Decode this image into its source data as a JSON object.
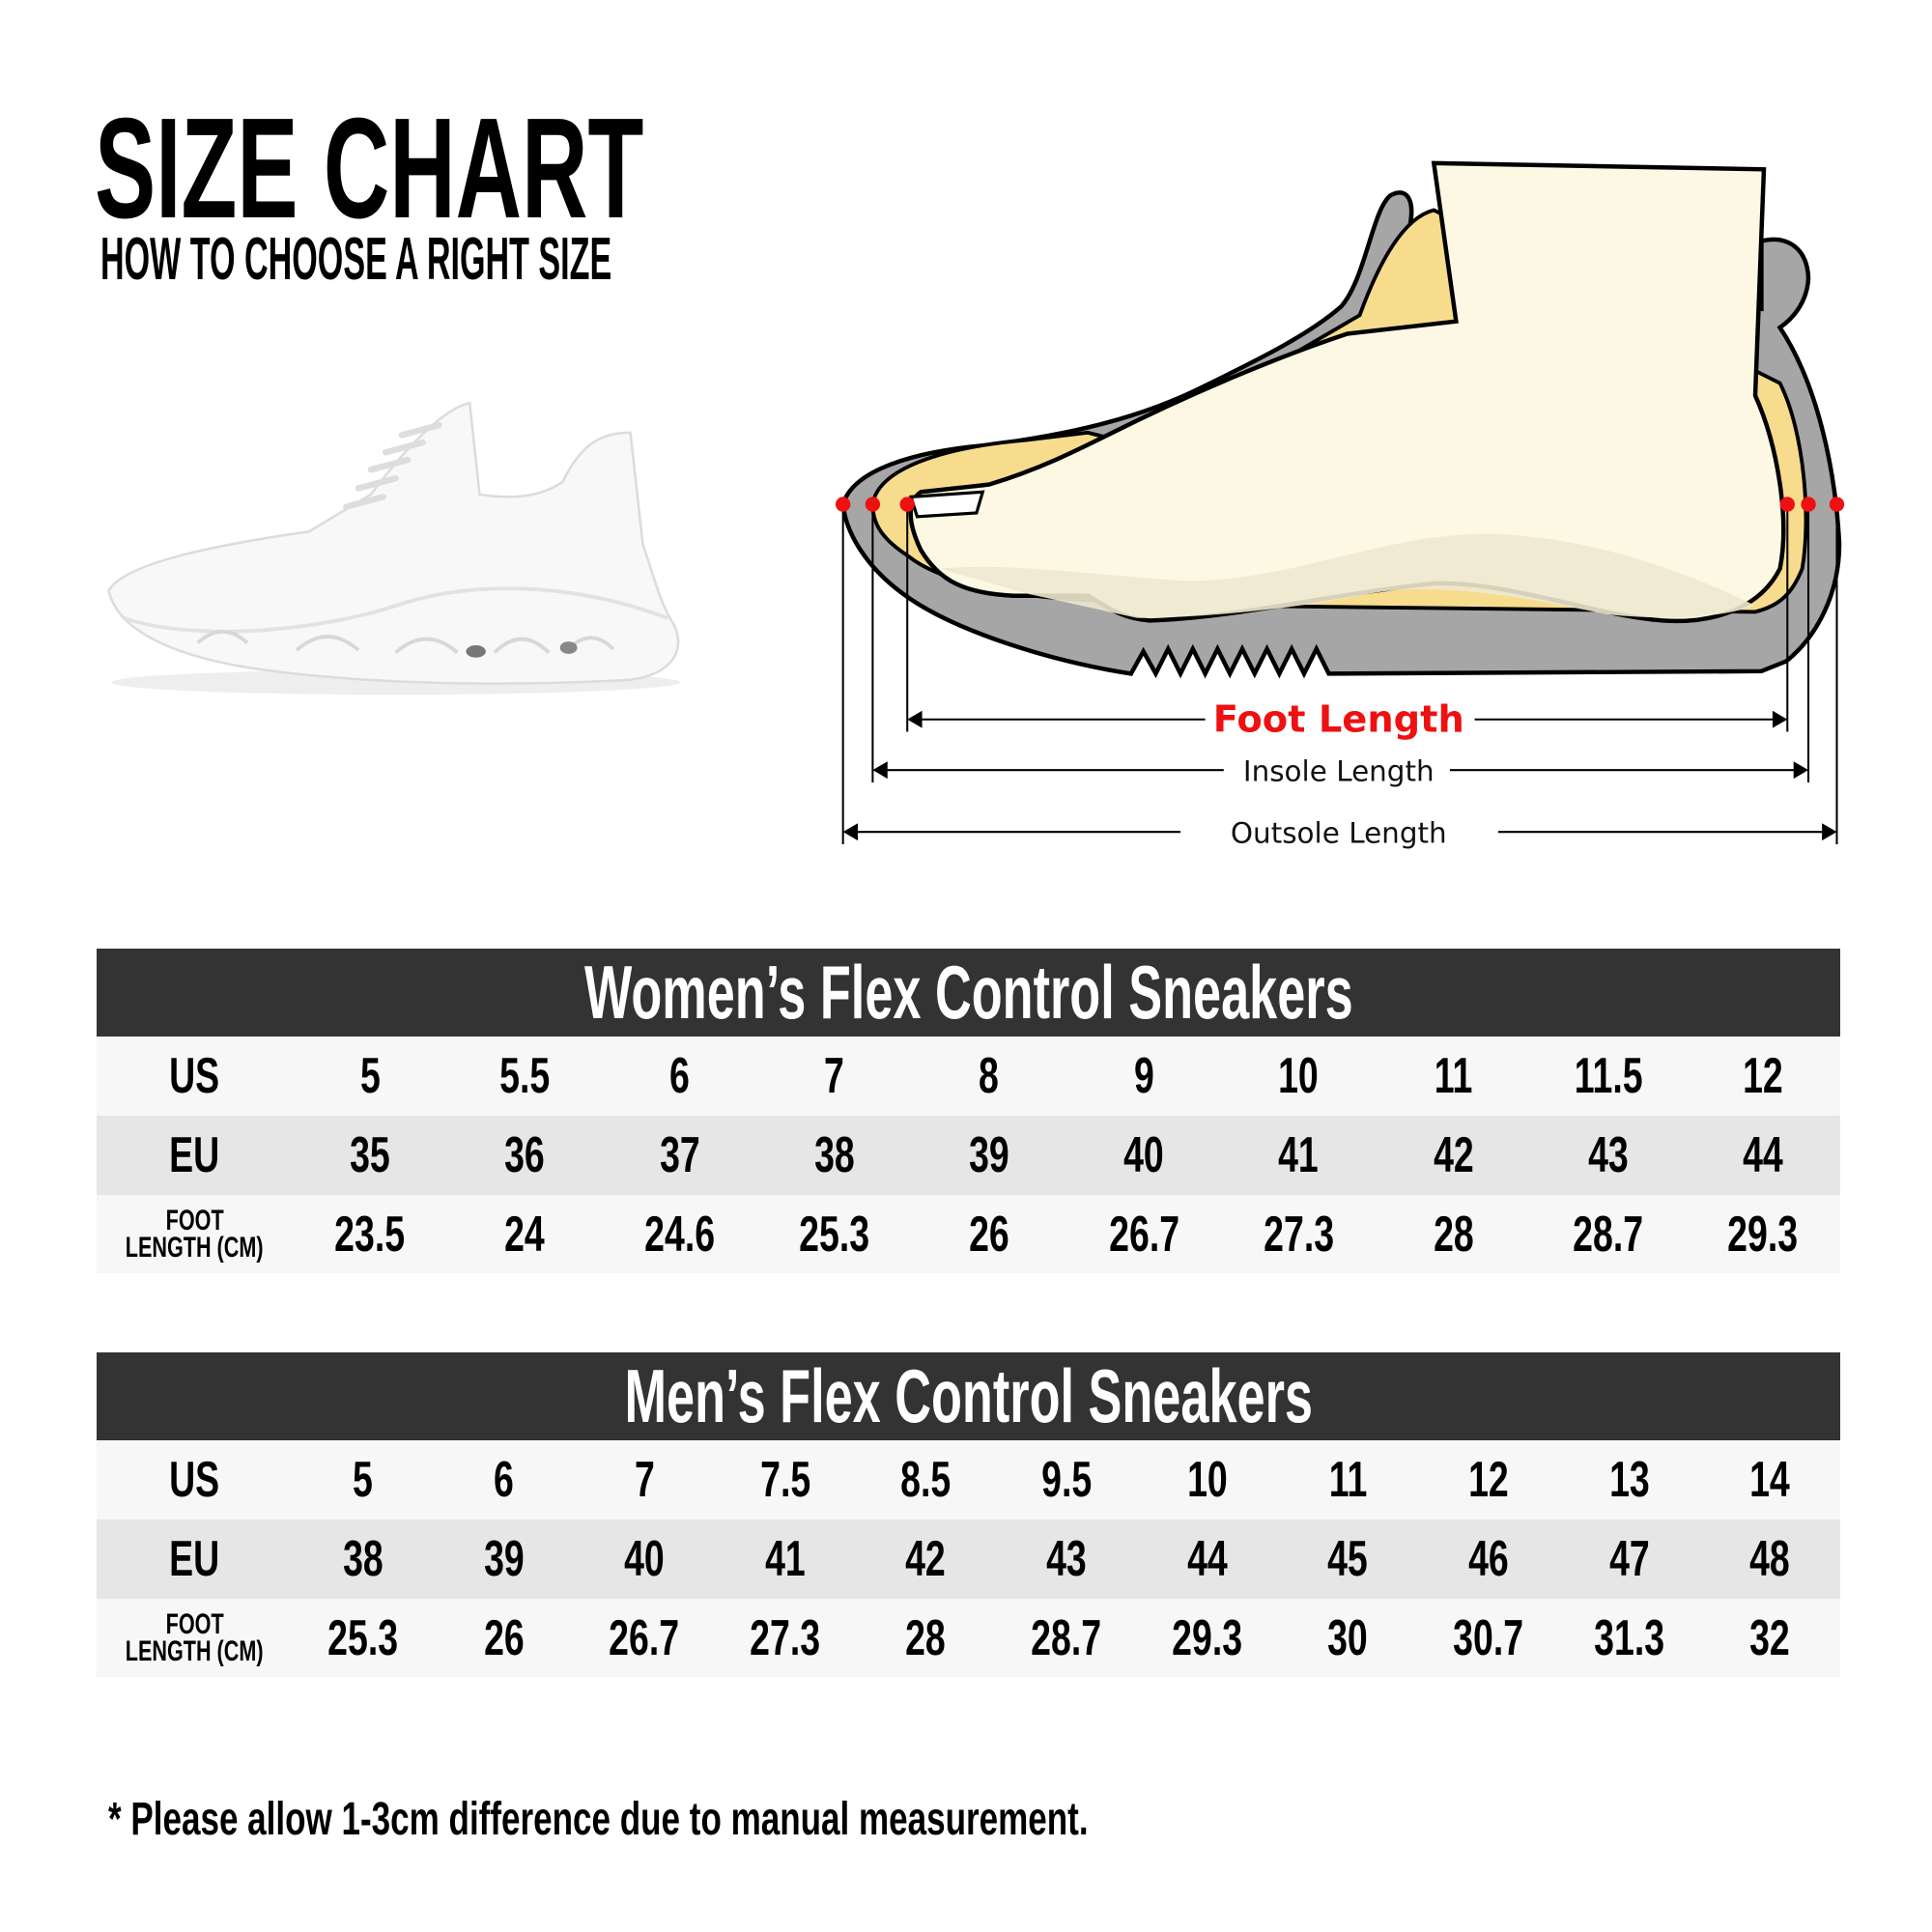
{
  "header": {
    "title": "SIZE CHART",
    "subtitle": "HOW TO CHOOSE A RIGHT SIZE"
  },
  "diagram": {
    "foot_length": "Foot Length",
    "insole_length": "Insole Length",
    "outsole_length": "Outsole Length",
    "colors": {
      "accent": "#EE1111",
      "shoe": "#A6A6A6",
      "insole": "#F7DC8E",
      "foot": "#FDF8E4"
    }
  },
  "tables": {
    "women": {
      "title": "Women’s Flex Control Sneakers",
      "rows": [
        {
          "label": "US",
          "values": [
            "5",
            "5.5",
            "6",
            "7",
            "8",
            "9",
            "10",
            "11",
            "11.5",
            "12"
          ]
        },
        {
          "label": "EU",
          "values": [
            "35",
            "36",
            "37",
            "38",
            "39",
            "40",
            "41",
            "42",
            "43",
            "44"
          ]
        },
        {
          "label_line1": "FOOT",
          "label_line2": "LENGTH (CM)",
          "values": [
            "23.5",
            "24",
            "24.6",
            "25.3",
            "26",
            "26.7",
            "27.3",
            "28",
            "28.7",
            "29.3"
          ]
        }
      ]
    },
    "men": {
      "title": "Men’s Flex Control Sneakers",
      "rows": [
        {
          "label": "US",
          "values": [
            "5",
            "6",
            "7",
            "7.5",
            "8.5",
            "9.5",
            "10",
            "11",
            "12",
            "13",
            "14"
          ]
        },
        {
          "label": "EU",
          "values": [
            "38",
            "39",
            "40",
            "41",
            "42",
            "43",
            "44",
            "45",
            "46",
            "47",
            "48"
          ]
        },
        {
          "label_line1": "FOOT",
          "label_line2": "LENGTH (CM)",
          "values": [
            "25.3",
            "26",
            "26.7",
            "27.3",
            "28",
            "28.7",
            "29.3",
            "30",
            "30.7",
            "31.3",
            "32"
          ]
        }
      ]
    }
  },
  "footnote": "* Please allow 1-3cm difference due to manual measurement."
}
